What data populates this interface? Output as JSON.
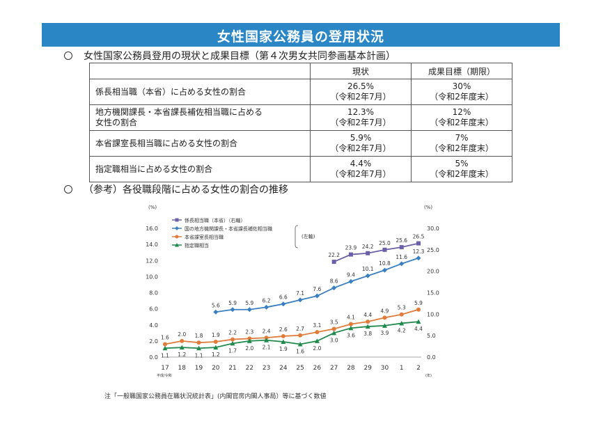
{
  "header": {
    "title": "女性国家公務員の登用状況"
  },
  "section1": {
    "heading": "女性国家公務員登用の現状と成果目標（第４次男女共同参画基本計画）"
  },
  "table": {
    "columns": [
      "",
      "現状",
      "成果目標（期限）"
    ],
    "rows": [
      {
        "label": "係長相当職（本省）に占める女性の割合",
        "current": "26.5%",
        "current_date": "（令和2年7月）",
        "target": "30%",
        "target_date": "（令和2年度末）"
      },
      {
        "label": "地方機関課長・本省課長補佐相当職に占める女性の割合",
        "current": "12.3%",
        "current_date": "（令和2年7月）",
        "target": "12%",
        "target_date": "（令和2年度末）"
      },
      {
        "label": "本省課室長相当職に占める女性の割合",
        "current": "5.9%",
        "current_date": "（令和2年7月）",
        "target": "7%",
        "target_date": "（令和2年度末）"
      },
      {
        "label": "指定職相当に占める女性の割合",
        "current": "4.4%",
        "current_date": "（令和2年7月）",
        "target": "5%",
        "target_date": "（令和2年度末）"
      }
    ]
  },
  "section2": {
    "heading": "（参考）各役職段階に占める女性の割合の推移"
  },
  "chart_data": {
    "type": "line",
    "x": [
      "17",
      "18",
      "19",
      "20",
      "21",
      "22",
      "23",
      "24",
      "25",
      "26",
      "27",
      "28",
      "29",
      "30",
      "1",
      "2"
    ],
    "x_note": "平成/令和",
    "x_unit": "(年)",
    "left_unit": "(%)",
    "right_unit": "(%)",
    "left_axis_note": "(左軸)",
    "ylim_left": [
      0,
      16
    ],
    "ylim_right": [
      0,
      30
    ],
    "left_ticks": [
      "0.0",
      "2.0",
      "4.0",
      "6.0",
      "8.0",
      "10.0",
      "12.0",
      "14.0",
      "16.0"
    ],
    "right_ticks": [
      "0.0",
      "5.0",
      "10.0",
      "15.0",
      "20.0",
      "25.0",
      "30.0"
    ],
    "series": [
      {
        "name": "係長相当職（本省）（右軸）",
        "axis": "right",
        "color": "#6a5fa8",
        "marker": "square",
        "values": [
          null,
          null,
          null,
          null,
          null,
          null,
          null,
          null,
          null,
          null,
          22.2,
          23.9,
          24.2,
          25.0,
          25.6,
          26.5
        ]
      },
      {
        "name": "国の地方機関課長・本省課長補佐相当職",
        "axis": "left",
        "color": "#3a7fc1",
        "marker": "diamond",
        "values": [
          null,
          null,
          null,
          5.6,
          5.9,
          5.9,
          6.2,
          6.6,
          7.1,
          7.6,
          8.6,
          9.4,
          10.1,
          10.8,
          11.6,
          12.3
        ]
      },
      {
        "name": "本省課室長相当職",
        "axis": "left",
        "color": "#e07b39",
        "marker": "circle",
        "values": [
          1.6,
          2.0,
          1.8,
          1.9,
          2.2,
          2.3,
          2.4,
          2.6,
          2.7,
          3.1,
          3.5,
          4.1,
          4.4,
          4.9,
          5.3,
          5.9
        ]
      },
      {
        "name": "指定職相当",
        "axis": "left",
        "color": "#1f8a4c",
        "marker": "triangle",
        "values": [
          1.1,
          1.2,
          1.1,
          1.2,
          1.7,
          2.0,
          2.1,
          1.9,
          1.6,
          2.0,
          3.0,
          3.6,
          3.8,
          3.9,
          4.2,
          4.4
        ]
      }
    ]
  },
  "footnote": "注「一般職国家公務員在職状況統計表」(内閣官房内閣人事局）等に基づく数値"
}
